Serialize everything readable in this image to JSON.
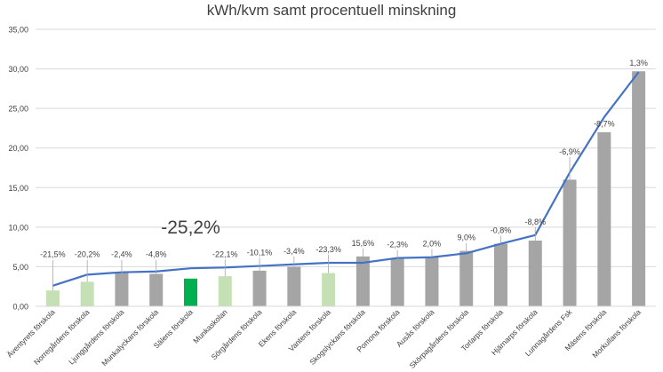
{
  "chart_data": {
    "type": "bar",
    "title": "kWh/kvm samt procentuell minskning",
    "xlabel": "",
    "ylabel": "",
    "ylim": [
      0,
      35
    ],
    "yticks": [
      "0,00",
      "5,00",
      "10,00",
      "15,00",
      "20,00",
      "25,00",
      "30,00",
      "35,00"
    ],
    "grid": true,
    "legend": "none",
    "categories": [
      "Äventyrets förskola",
      "Norregårdens förskola",
      "Ljunggårdens förskola",
      "Munkalyckans förskola",
      "Sälens förskola",
      "Munkaskolan",
      "Sörgårdens förskola",
      "Ekens förskola",
      "Vantens förskola",
      "Skogslyckans förskola",
      "Pomona förskola",
      "Ausås förskola",
      "Skörpagårdens förskola",
      "Torlarps förskola",
      "Hjärnarps förskola",
      "Lunnagårdens Fsk",
      "Mäsens förskola",
      "Morkullans förskola"
    ],
    "series": [
      {
        "kind": "bar",
        "values": [
          2.0,
          3.1,
          4.2,
          4.1,
          3.5,
          3.8,
          4.5,
          5.0,
          4.2,
          6.3,
          6.0,
          6.2,
          7.0,
          7.9,
          8.3,
          16.0,
          22.0,
          29.7
        ]
      },
      {
        "kind": "line",
        "values": [
          2.6,
          4.0,
          4.3,
          4.4,
          4.8,
          4.9,
          5.1,
          5.3,
          5.5,
          5.5,
          6.1,
          6.2,
          6.7,
          7.9,
          9.0,
          16.9,
          23.9,
          29.6
        ]
      }
    ],
    "data_labels": [
      "-21,5%",
      "-20,2%",
      "-2,4%",
      "-4,8%",
      "-25,2%",
      "-22,1%",
      "-10,1%",
      "-3,4%",
      "-23,3%",
      "15,6%",
      "-2,3%",
      "2,0%",
      "9,0%",
      "-0,8%",
      "-8,8%",
      "-6,9%",
      "-8,7%",
      "1,3%"
    ],
    "bar_colors": [
      "#c5e0b4",
      "#c5e0b4",
      "#a5a5a5",
      "#a5a5a5",
      "#00b050",
      "#c5e0b4",
      "#a5a5a5",
      "#a5a5a5",
      "#c5e0b4",
      "#a5a5a5",
      "#a5a5a5",
      "#a5a5a5",
      "#a5a5a5",
      "#a5a5a5",
      "#a5a5a5",
      "#a5a5a5",
      "#a5a5a5",
      "#a5a5a5"
    ],
    "line_color": "#4472c4",
    "grid_color": "#d9d9d9",
    "text_color": "#404040",
    "highlight_label_index": 4
  }
}
